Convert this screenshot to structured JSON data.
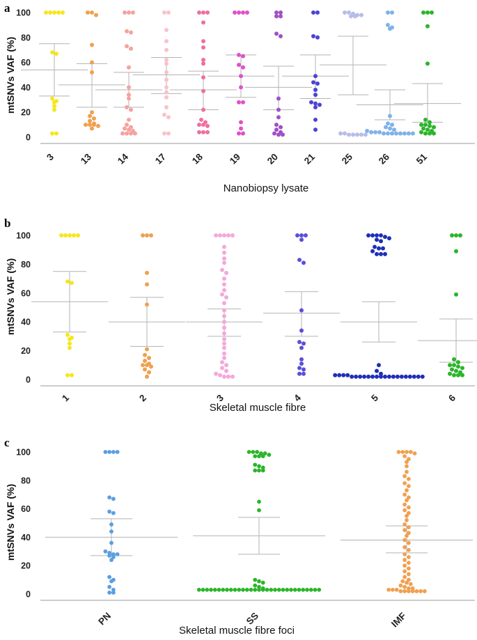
{
  "chart_data": [
    {
      "panel": "a",
      "type": "scatter",
      "ylabel": "mtSNVs VAF (%)",
      "xlabel": "Nanobiopsy lysate",
      "ylim": [
        0,
        100
      ],
      "yticks": [
        "0",
        "20",
        "40",
        "60",
        "80",
        "100"
      ],
      "categories": [
        {
          "label": "3",
          "color": "#f5e71c",
          "mean": 54,
          "upper": 75,
          "lower": 33,
          "values": [
            100,
            100,
            100,
            100,
            100,
            68,
            67,
            31,
            29,
            28,
            25,
            22,
            3,
            3
          ]
        },
        {
          "label": "13",
          "color": "#f0a050",
          "mean": 42,
          "upper": 59,
          "lower": 24,
          "values": [
            100,
            100,
            98,
            74,
            60,
            52,
            20,
            17,
            15,
            13,
            11,
            10,
            10,
            10,
            9,
            7
          ]
        },
        {
          "label": "14",
          "color": "#f4a39e",
          "mean": 38,
          "upper": 52,
          "lower": 24,
          "values": [
            100,
            100,
            100,
            85,
            84,
            73,
            71,
            56,
            40,
            34,
            31,
            24,
            22,
            14,
            10,
            8,
            7,
            6,
            5,
            3,
            3,
            3,
            3
          ]
        },
        {
          "label": "17",
          "color": "#f9c3c9",
          "mean": 50,
          "upper": 64,
          "lower": 35,
          "values": [
            100,
            100,
            86,
            77,
            70,
            62,
            59,
            52,
            46,
            40,
            36,
            32,
            24,
            18,
            16,
            3,
            3
          ]
        },
        {
          "label": "18",
          "color": "#ef6fa0",
          "mean": 38,
          "upper": 53,
          "lower": 22,
          "values": [
            100,
            100,
            100,
            92,
            77,
            72,
            62,
            59,
            48,
            37,
            22,
            14,
            12,
            10,
            10,
            9,
            4,
            4,
            4
          ]
        },
        {
          "label": "19",
          "color": "#e051c8",
          "mean": 49,
          "upper": 66,
          "lower": 32,
          "values": [
            100,
            100,
            100,
            100,
            66,
            65,
            58,
            56,
            49,
            40,
            28,
            28,
            12,
            7,
            3,
            3
          ]
        },
        {
          "label": "20",
          "color": "#a050c8",
          "mean": 40,
          "upper": 57,
          "lower": 22,
          "values": [
            100,
            100,
            97,
            97,
            83,
            81,
            31,
            22,
            16,
            10,
            8,
            6,
            4,
            3,
            2,
            2
          ]
        },
        {
          "label": "21",
          "color": "#4b43d6",
          "mean": 49,
          "upper": 66,
          "lower": 31,
          "values": [
            100,
            100,
            81,
            80,
            49,
            44,
            43,
            38,
            34,
            28,
            27,
            26,
            24,
            14,
            6
          ]
        },
        {
          "label": "25",
          "color": "#b7bde8",
          "mean": 58,
          "upper": 81,
          "lower": 34,
          "values": [
            100,
            100,
            99,
            98,
            98,
            97,
            97,
            3,
            3,
            2,
            2,
            2,
            2,
            2
          ]
        },
        {
          "label": "26",
          "color": "#7fb2ea",
          "mean": 26,
          "upper": 38,
          "lower": 14,
          "values": [
            100,
            100,
            90,
            88,
            87,
            17,
            11,
            10,
            8,
            7,
            6,
            5,
            4,
            4,
            4,
            3,
            3,
            3,
            3,
            3,
            3,
            3,
            3
          ]
        },
        {
          "label": "51",
          "color": "#2ab52a",
          "mean": 27,
          "upper": 43,
          "lower": 12,
          "values": [
            100,
            100,
            100,
            89,
            59,
            14,
            12,
            10,
            10,
            9,
            8,
            7,
            6,
            5,
            4,
            3,
            3,
            3
          ]
        }
      ]
    },
    {
      "panel": "b",
      "type": "scatter",
      "ylabel": "mtSNVs VAF (%)",
      "xlabel": "Skeletal muscle fibre",
      "ylim": [
        0,
        100
      ],
      "yticks": [
        "0",
        "20",
        "40",
        "60",
        "80",
        "100"
      ],
      "categories": [
        {
          "label": "1",
          "color": "#f5e71c",
          "mean": 54,
          "upper": 75,
          "lower": 33,
          "values": [
            100,
            100,
            100,
            100,
            100,
            68,
            67,
            31,
            29,
            28,
            25,
            22,
            3,
            3
          ]
        },
        {
          "label": "2",
          "color": "#f0a050",
          "mean": 40,
          "upper": 57,
          "lower": 23,
          "values": [
            100,
            100,
            100,
            74,
            66,
            52,
            21,
            17,
            15,
            13,
            11,
            10,
            10,
            9,
            7,
            5,
            2
          ]
        },
        {
          "label": "3",
          "color": "#f4a8dc",
          "mean": 40,
          "upper": 49,
          "lower": 30,
          "values": [
            100,
            100,
            100,
            100,
            100,
            92,
            88,
            84,
            81,
            76,
            74,
            70,
            66,
            62,
            59,
            57,
            53,
            48,
            44,
            40,
            36,
            32,
            28,
            25,
            22,
            18,
            15,
            12,
            10,
            8,
            6,
            4,
            3,
            2,
            2,
            2
          ]
        },
        {
          "label": "4",
          "color": "#5a4fd8",
          "mean": 46,
          "upper": 61,
          "lower": 30,
          "values": [
            100,
            100,
            100,
            97,
            83,
            81,
            48,
            34,
            26,
            25,
            22,
            14,
            11,
            8,
            7,
            4,
            4
          ]
        },
        {
          "label": "5",
          "color": "#1d2fb8",
          "mean": 40,
          "upper": 54,
          "lower": 26,
          "values": [
            100,
            100,
            100,
            100,
            99,
            98,
            97,
            96,
            92,
            91,
            91,
            89,
            87,
            87,
            87,
            10,
            6,
            4,
            3,
            3,
            3,
            3,
            2,
            2,
            2,
            2,
            2,
            2,
            2,
            2,
            2,
            2,
            2,
            2,
            2,
            2,
            2,
            2,
            2,
            2
          ]
        },
        {
          "label": "6",
          "color": "#2ab52a",
          "mean": 27,
          "upper": 42,
          "lower": 12,
          "values": [
            100,
            100,
            100,
            89,
            59,
            14,
            12,
            10,
            10,
            9,
            8,
            7,
            6,
            5,
            4,
            3,
            3,
            3
          ]
        }
      ]
    },
    {
      "panel": "c",
      "type": "scatter",
      "ylabel": "mtSNVs VAF (%)",
      "xlabel": "Skeletal muscle fibre foci",
      "ylim": [
        0,
        100
      ],
      "yticks": [
        "0",
        "20",
        "40",
        "60",
        "80",
        "100"
      ],
      "categories": [
        {
          "label": "PN",
          "color": "#5a9ee0",
          "mean": 40,
          "upper": 53,
          "lower": 27,
          "values": [
            100,
            100,
            100,
            100,
            68,
            67,
            58,
            57,
            49,
            44,
            36,
            30,
            29,
            28,
            28,
            27,
            26,
            24,
            12,
            10,
            9,
            5,
            3,
            1,
            1
          ]
        },
        {
          "label": "SS",
          "color": "#2ab52a",
          "mean": 41,
          "upper": 54,
          "lower": 28,
          "values": [
            100,
            100,
            100,
            99,
            99,
            98,
            97,
            97,
            97,
            91,
            90,
            89,
            87,
            87,
            87,
            65,
            59,
            10,
            9,
            8,
            6,
            5,
            4,
            3,
            3,
            3,
            3,
            3,
            3,
            3,
            3,
            3,
            3,
            3,
            3,
            3,
            3,
            3,
            3,
            3,
            3,
            3,
            3,
            3,
            3,
            3,
            3,
            3,
            3,
            3,
            3,
            3,
            3,
            3
          ]
        },
        {
          "label": "IMF",
          "color": "#f0a050",
          "mean": 38,
          "upper": 48,
          "lower": 29,
          "values": [
            100,
            100,
            100,
            100,
            99,
            97,
            95,
            93,
            90,
            86,
            83,
            81,
            78,
            76,
            73,
            70,
            68,
            66,
            63,
            61,
            59,
            57,
            55,
            52,
            49,
            47,
            45,
            43,
            41,
            38,
            36,
            33,
            31,
            28,
            26,
            24,
            22,
            20,
            18,
            16,
            14,
            12,
            10,
            9,
            8,
            7,
            6,
            5,
            4,
            4,
            3,
            3,
            3,
            2,
            2,
            2,
            2,
            2,
            2,
            2
          ]
        }
      ]
    }
  ]
}
